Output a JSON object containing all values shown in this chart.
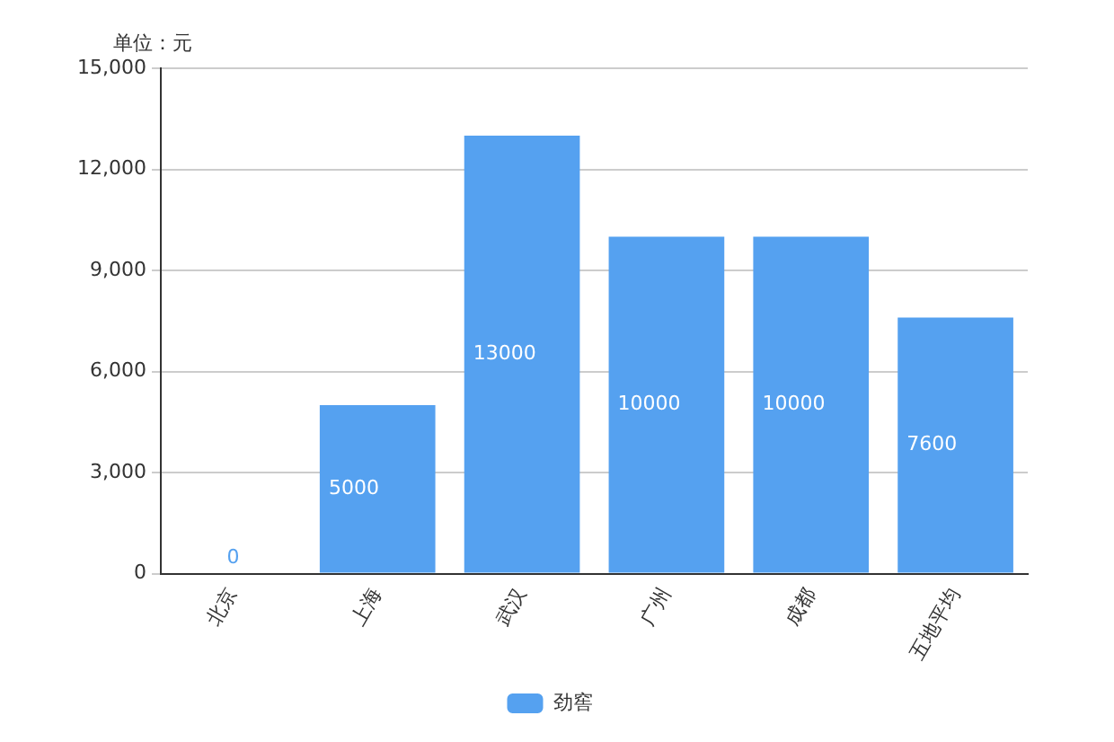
{
  "chart_data": {
    "type": "bar",
    "ylabel": "单位：元",
    "categories": [
      "北京",
      "上海",
      "武汉",
      "广州",
      "成都",
      "五地平均"
    ],
    "series": [
      {
        "name": "劲窖",
        "color": "#55a1f0",
        "values": [
          0,
          5000,
          13000,
          10000,
          10000,
          7600
        ]
      }
    ],
    "ylim": [
      0,
      15000
    ],
    "yticks": [
      {
        "value": 0,
        "label": "0"
      },
      {
        "value": 3000,
        "label": "3,000"
      },
      {
        "value": 6000,
        "label": "6,000"
      },
      {
        "value": 9000,
        "label": "9,000"
      },
      {
        "value": 12000,
        "label": "12,000"
      },
      {
        "value": 15000,
        "label": "15,000"
      }
    ],
    "grid": "y",
    "legend": "bottom",
    "data_labels": true
  }
}
